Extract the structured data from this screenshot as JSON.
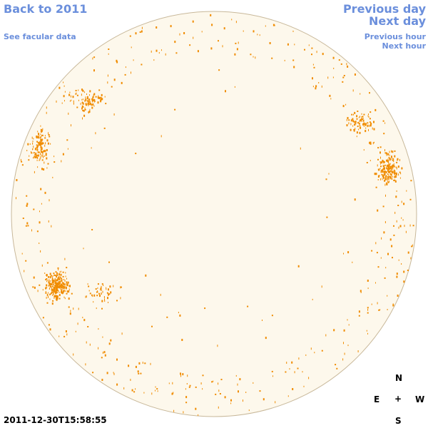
{
  "nav": {
    "back": "Back to 2011",
    "facular": "See facular data",
    "prev_day": "Previous day",
    "next_day": "Next day",
    "prev_hour": "Previous hour",
    "next_hour": "Next hour"
  },
  "timestamp": "2011-12-30T15:58:55",
  "compass": {
    "north": "N",
    "south": "S",
    "east": "E",
    "west": "W",
    "center": "+"
  },
  "colors": {
    "disk_fill": "#fdf8ec",
    "disk_stroke": "#c8b89a",
    "facula": "#f08c00",
    "link": "#6b8fdc"
  }
}
